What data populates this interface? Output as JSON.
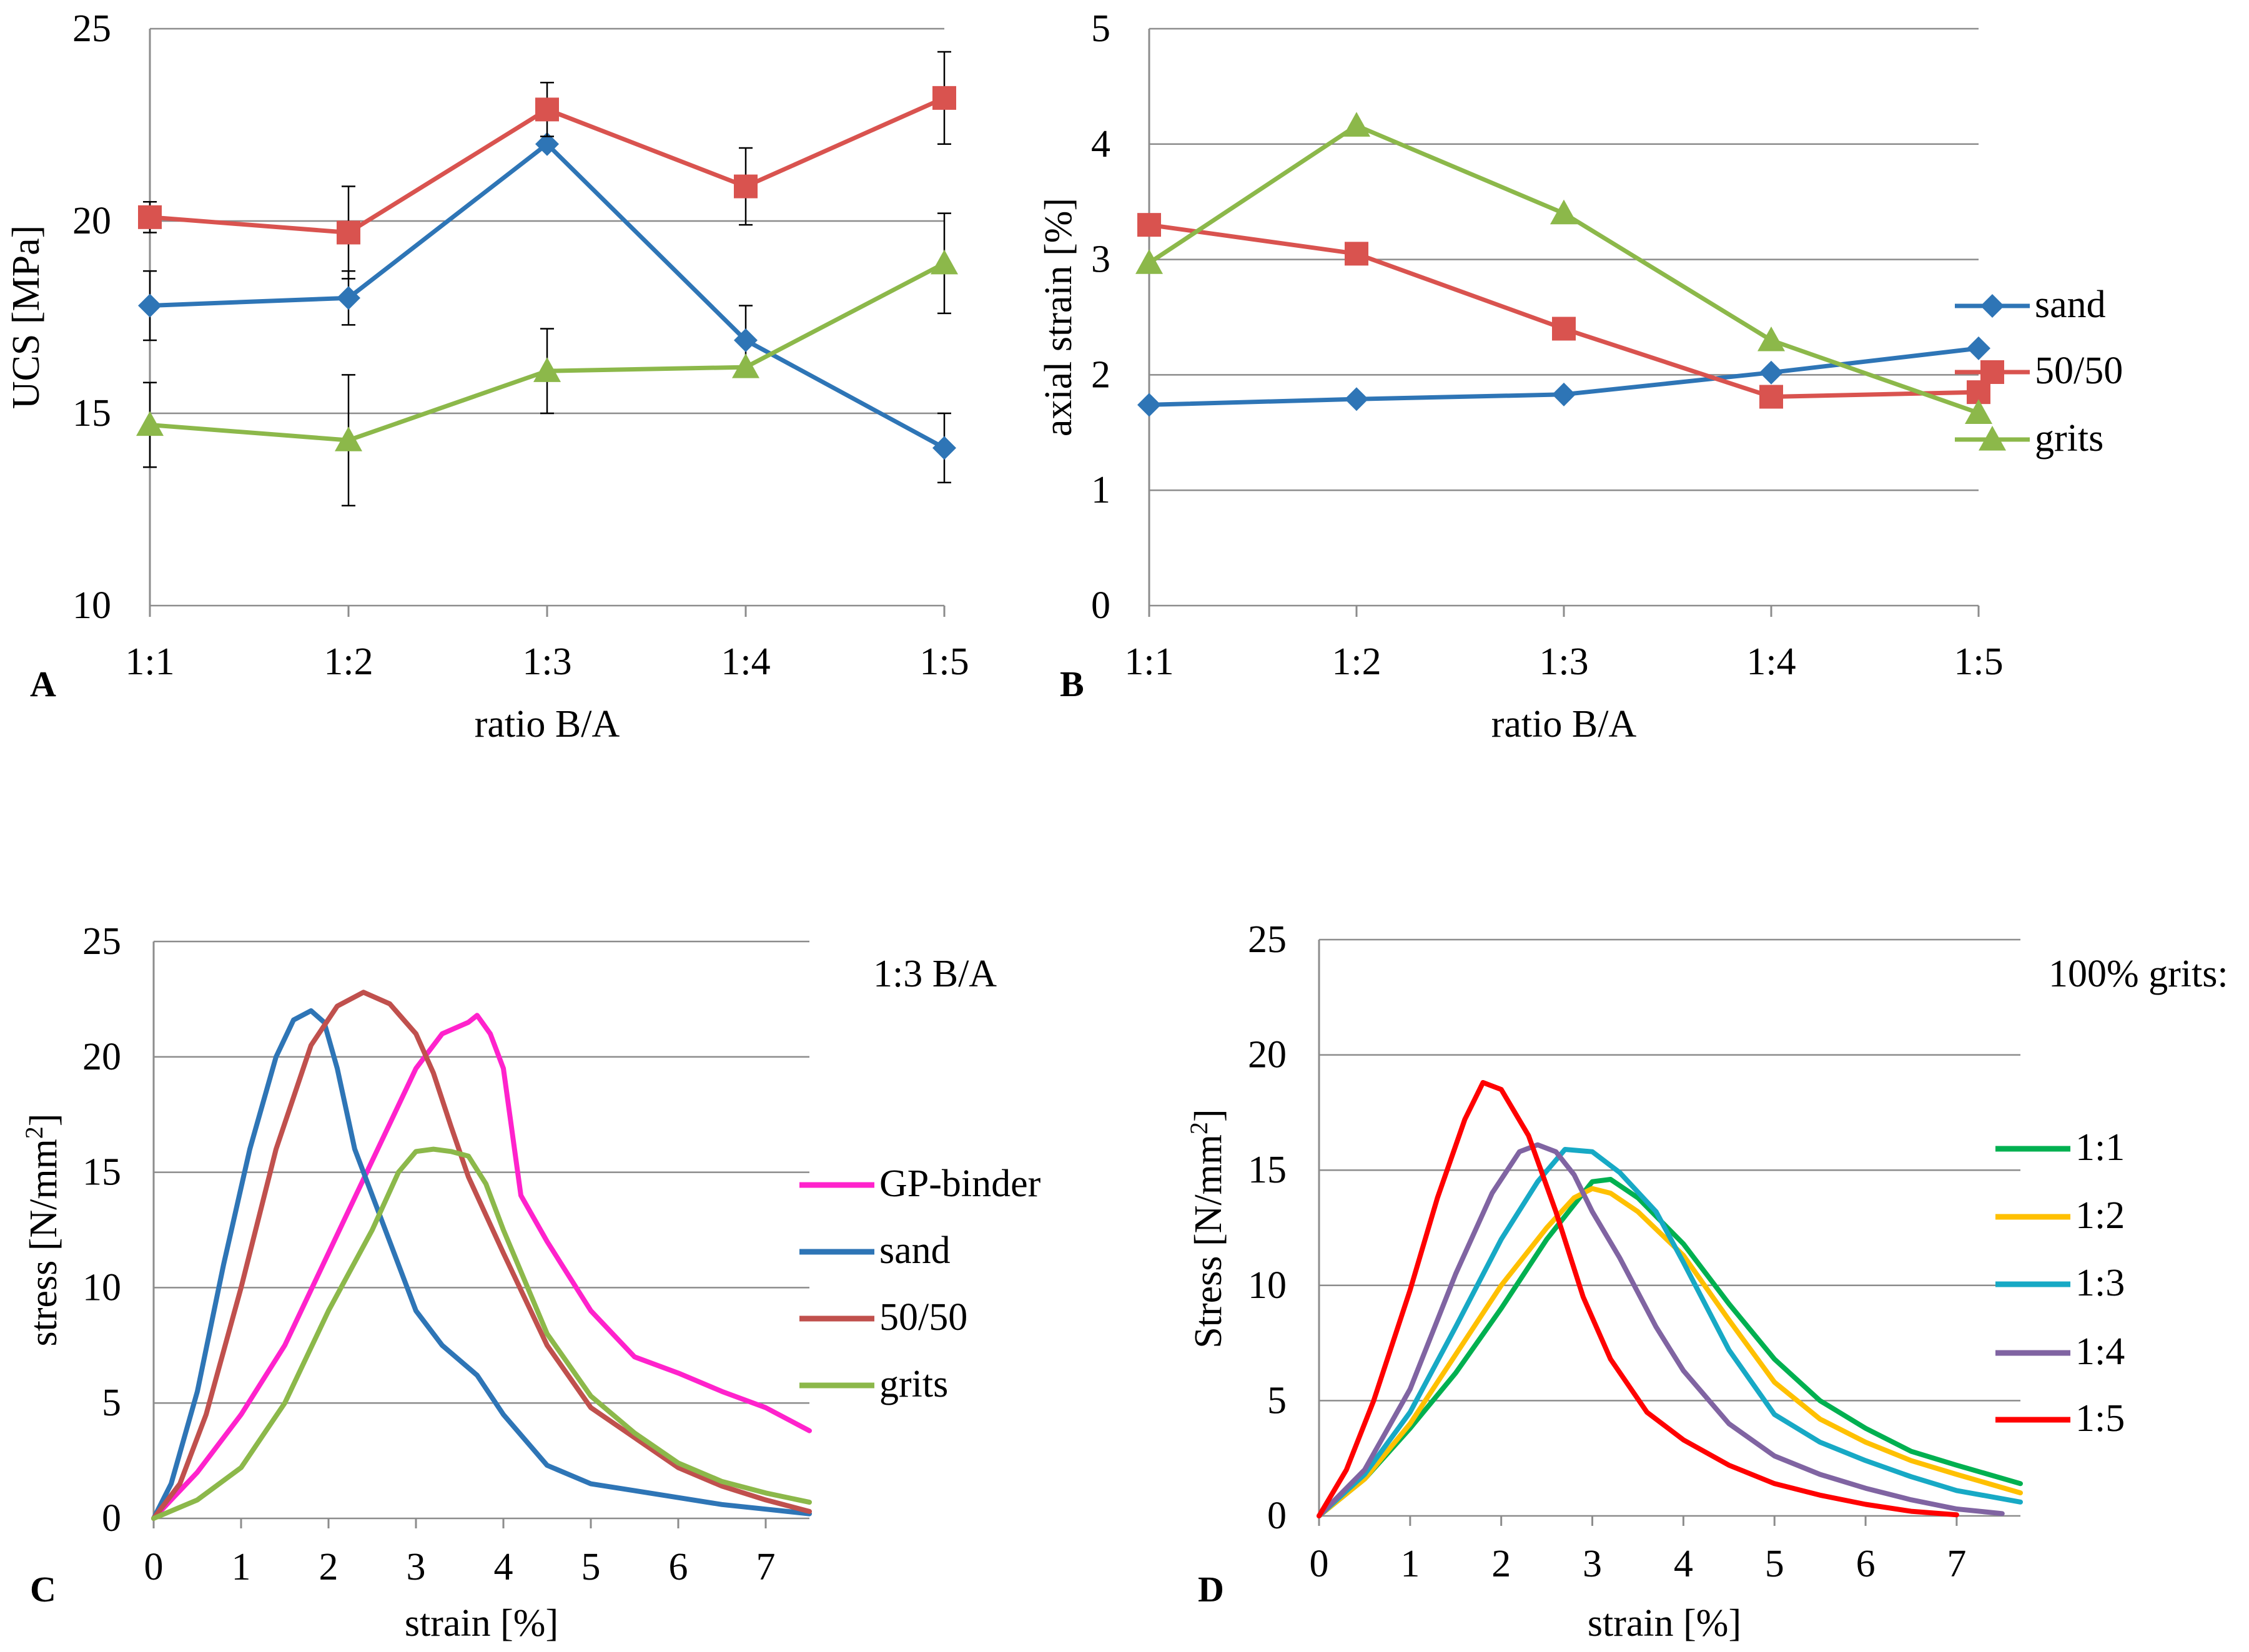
{
  "chart_data": [
    {
      "panel": "A",
      "type": "line",
      "categories": [
        "1:1",
        "1:2",
        "1:3",
        "1:4",
        "1:5"
      ],
      "xlabel": "ratio B/A",
      "ylabel": "UCS [MPa]",
      "ylim": [
        10,
        25
      ],
      "yticks": [
        10,
        15,
        20,
        25
      ],
      "grid": true,
      "series": [
        {
          "name": "sand",
          "color": "#2e75b6",
          "marker": "diamond",
          "values": [
            17.8,
            18.0,
            22.0,
            16.9,
            14.1
          ],
          "err": [
            0.9,
            0.7,
            0,
            0.9,
            0.9
          ]
        },
        {
          "name": "50/50",
          "color": "#d9534f",
          "marker": "square",
          "values": [
            20.1,
            19.7,
            22.9,
            20.9,
            23.2
          ],
          "err": [
            0.4,
            1.2,
            0.7,
            1.0,
            1.2
          ]
        },
        {
          "name": "grits",
          "color": "#8cb84a",
          "marker": "triangle",
          "values": [
            14.7,
            14.3,
            16.1,
            16.2,
            18.9
          ],
          "err": [
            1.1,
            1.7,
            1.1,
            0,
            1.3
          ]
        }
      ]
    },
    {
      "panel": "B",
      "type": "line",
      "categories": [
        "1:1",
        "1:2",
        "1:3",
        "1:4",
        "1:5"
      ],
      "xlabel": "ratio B/A",
      "ylabel": "axial strain [%]",
      "ylim": [
        0,
        5
      ],
      "yticks": [
        0,
        1,
        2,
        3,
        4,
        5
      ],
      "grid": true,
      "legend": "right",
      "series": [
        {
          "name": "sand",
          "color": "#2e75b6",
          "marker": "diamond",
          "values": [
            1.74,
            1.79,
            1.83,
            2.02,
            2.23
          ]
        },
        {
          "name": "50/50",
          "color": "#d9534f",
          "marker": "square",
          "values": [
            3.3,
            3.05,
            2.4,
            1.81,
            1.85
          ]
        },
        {
          "name": "grits",
          "color": "#8cb84a",
          "marker": "triangle",
          "values": [
            2.97,
            4.16,
            3.4,
            2.3,
            1.67
          ]
        }
      ]
    },
    {
      "panel": "C",
      "type": "line",
      "title": "1:3 B/A",
      "xlabel": "strain [%]",
      "ylabel": "stress [N/mm",
      "ylabel_sup": "2",
      "ylabel_end": "]",
      "xlim": [
        0,
        7.5
      ],
      "ylim": [
        0,
        25
      ],
      "xticks": [
        0,
        1,
        2,
        3,
        4,
        5,
        6,
        7
      ],
      "yticks": [
        0,
        5,
        10,
        15,
        20,
        25
      ],
      "grid": true,
      "legend": "right",
      "series": [
        {
          "name": "GP-binder",
          "color": "#ff22cc",
          "x": [
            0,
            0.5,
            1,
            1.5,
            2,
            2.5,
            3,
            3.3,
            3.6,
            3.7,
            3.85,
            4.0,
            4.2,
            4.5,
            5.0,
            5.5,
            6.0,
            6.5,
            7.0,
            7.5
          ],
          "y": [
            0,
            2,
            4.5,
            7.5,
            11.5,
            15.5,
            19.5,
            21.0,
            21.5,
            21.8,
            21.0,
            19.5,
            14,
            12,
            9,
            7,
            6.3,
            5.5,
            4.8,
            3.8
          ]
        },
        {
          "name": "sand",
          "color": "#2e75b6",
          "x": [
            0,
            0.2,
            0.5,
            0.8,
            1.1,
            1.4,
            1.6,
            1.8,
            1.95,
            2.1,
            2.3,
            2.6,
            3.0,
            3.3,
            3.7,
            4.0,
            4.5,
            5.0,
            5.5,
            6.0,
            6.5,
            7.0,
            7.5
          ],
          "y": [
            0,
            1.5,
            5.5,
            11,
            16,
            20,
            21.6,
            22,
            21.5,
            19.5,
            16,
            13,
            9,
            7.5,
            6.2,
            4.5,
            2.3,
            1.5,
            1.2,
            0.9,
            0.6,
            0.4,
            0.2
          ]
        },
        {
          "name": "50/50",
          "color": "#c0504d",
          "x": [
            0,
            0.3,
            0.6,
            1.0,
            1.4,
            1.8,
            2.1,
            2.4,
            2.7,
            3.0,
            3.2,
            3.4,
            3.6,
            4.0,
            4.5,
            5.0,
            5.5,
            6.0,
            6.5,
            7.0,
            7.5
          ],
          "y": [
            0,
            1.5,
            4.5,
            10,
            16,
            20.5,
            22.2,
            22.8,
            22.3,
            21,
            19.3,
            17,
            14.8,
            11.5,
            7.5,
            4.8,
            3.5,
            2.2,
            1.4,
            0.8,
            0.3
          ]
        },
        {
          "name": "grits",
          "color": "#8cb84a",
          "x": [
            0,
            0.5,
            1,
            1.5,
            2,
            2.5,
            2.8,
            3.0,
            3.2,
            3.4,
            3.6,
            3.8,
            4.0,
            4.5,
            5.0,
            5.5,
            6.0,
            6.5,
            7.0,
            7.5
          ],
          "y": [
            0,
            0.8,
            2.2,
            5,
            9,
            12.5,
            15,
            15.9,
            16,
            15.9,
            15.7,
            14.5,
            12.5,
            8,
            5.3,
            3.7,
            2.4,
            1.6,
            1.1,
            0.7
          ]
        }
      ]
    },
    {
      "panel": "D",
      "type": "line",
      "title": "100% grits:",
      "xlabel": "strain [%]",
      "ylabel": "Stress [N/mm",
      "ylabel_sup": "2",
      "ylabel_end": "]",
      "xlim": [
        0,
        7.7
      ],
      "ylim": [
        0,
        25
      ],
      "xticks": [
        0,
        1,
        2,
        3,
        4,
        5,
        6,
        7
      ],
      "yticks": [
        0,
        5,
        10,
        15,
        20,
        25
      ],
      "grid": true,
      "legend": "right",
      "series": [
        {
          "name": "1:1",
          "color": "#00b050",
          "x": [
            0,
            0.5,
            1,
            1.5,
            2,
            2.5,
            3.0,
            3.2,
            3.5,
            4.0,
            4.5,
            5.0,
            5.5,
            6.0,
            6.5,
            7.0,
            7.7
          ],
          "y": [
            0,
            1.6,
            3.8,
            6.2,
            9,
            12,
            14.5,
            14.6,
            13.8,
            11.8,
            9.2,
            6.8,
            5,
            3.8,
            2.8,
            2.2,
            1.4
          ]
        },
        {
          "name": "1:2",
          "color": "#ffc000",
          "x": [
            0,
            0.5,
            1,
            1.5,
            2,
            2.5,
            2.8,
            3.0,
            3.2,
            3.5,
            4.0,
            4.5,
            5.0,
            5.5,
            6.0,
            6.5,
            7.0,
            7.7
          ],
          "y": [
            0,
            1.6,
            4,
            7,
            10,
            12.5,
            13.8,
            14.2,
            14,
            13.2,
            11.3,
            8.5,
            5.8,
            4.2,
            3.2,
            2.4,
            1.8,
            1.0
          ]
        },
        {
          "name": "1:3",
          "color": "#17a9c5",
          "x": [
            0,
            0.5,
            1,
            1.5,
            2,
            2.4,
            2.7,
            3.0,
            3.3,
            3.7,
            4.0,
            4.5,
            5.0,
            5.5,
            6.0,
            6.5,
            7.0,
            7.7
          ],
          "y": [
            0,
            1.8,
            4.5,
            8.2,
            12,
            14.5,
            15.9,
            15.8,
            14.9,
            13.2,
            11,
            7.2,
            4.4,
            3.2,
            2.4,
            1.7,
            1.1,
            0.6
          ]
        },
        {
          "name": "1:4",
          "color": "#8064a2",
          "x": [
            0,
            0.5,
            1,
            1.5,
            1.9,
            2.2,
            2.4,
            2.6,
            2.8,
            3.0,
            3.3,
            3.7,
            4.0,
            4.5,
            5.0,
            5.5,
            6.0,
            6.5,
            7.0,
            7.5
          ],
          "y": [
            0,
            2,
            5.5,
            10.5,
            14,
            15.8,
            16.1,
            15.8,
            14.8,
            13.2,
            11.2,
            8.2,
            6.3,
            4,
            2.6,
            1.8,
            1.2,
            0.7,
            0.3,
            0.1
          ]
        },
        {
          "name": "1:5",
          "color": "#ff0000",
          "x": [
            0,
            0.3,
            0.6,
            1.0,
            1.3,
            1.6,
            1.8,
            2.0,
            2.3,
            2.6,
            2.9,
            3.2,
            3.6,
            4.0,
            4.5,
            5.0,
            5.5,
            6.0,
            6.5,
            7.0
          ],
          "y": [
            0,
            2,
            5,
            9.8,
            13.8,
            17.2,
            18.8,
            18.5,
            16.5,
            13.2,
            9.5,
            6.8,
            4.5,
            3.3,
            2.2,
            1.4,
            0.9,
            0.5,
            0.2,
            0.05
          ]
        }
      ]
    }
  ]
}
